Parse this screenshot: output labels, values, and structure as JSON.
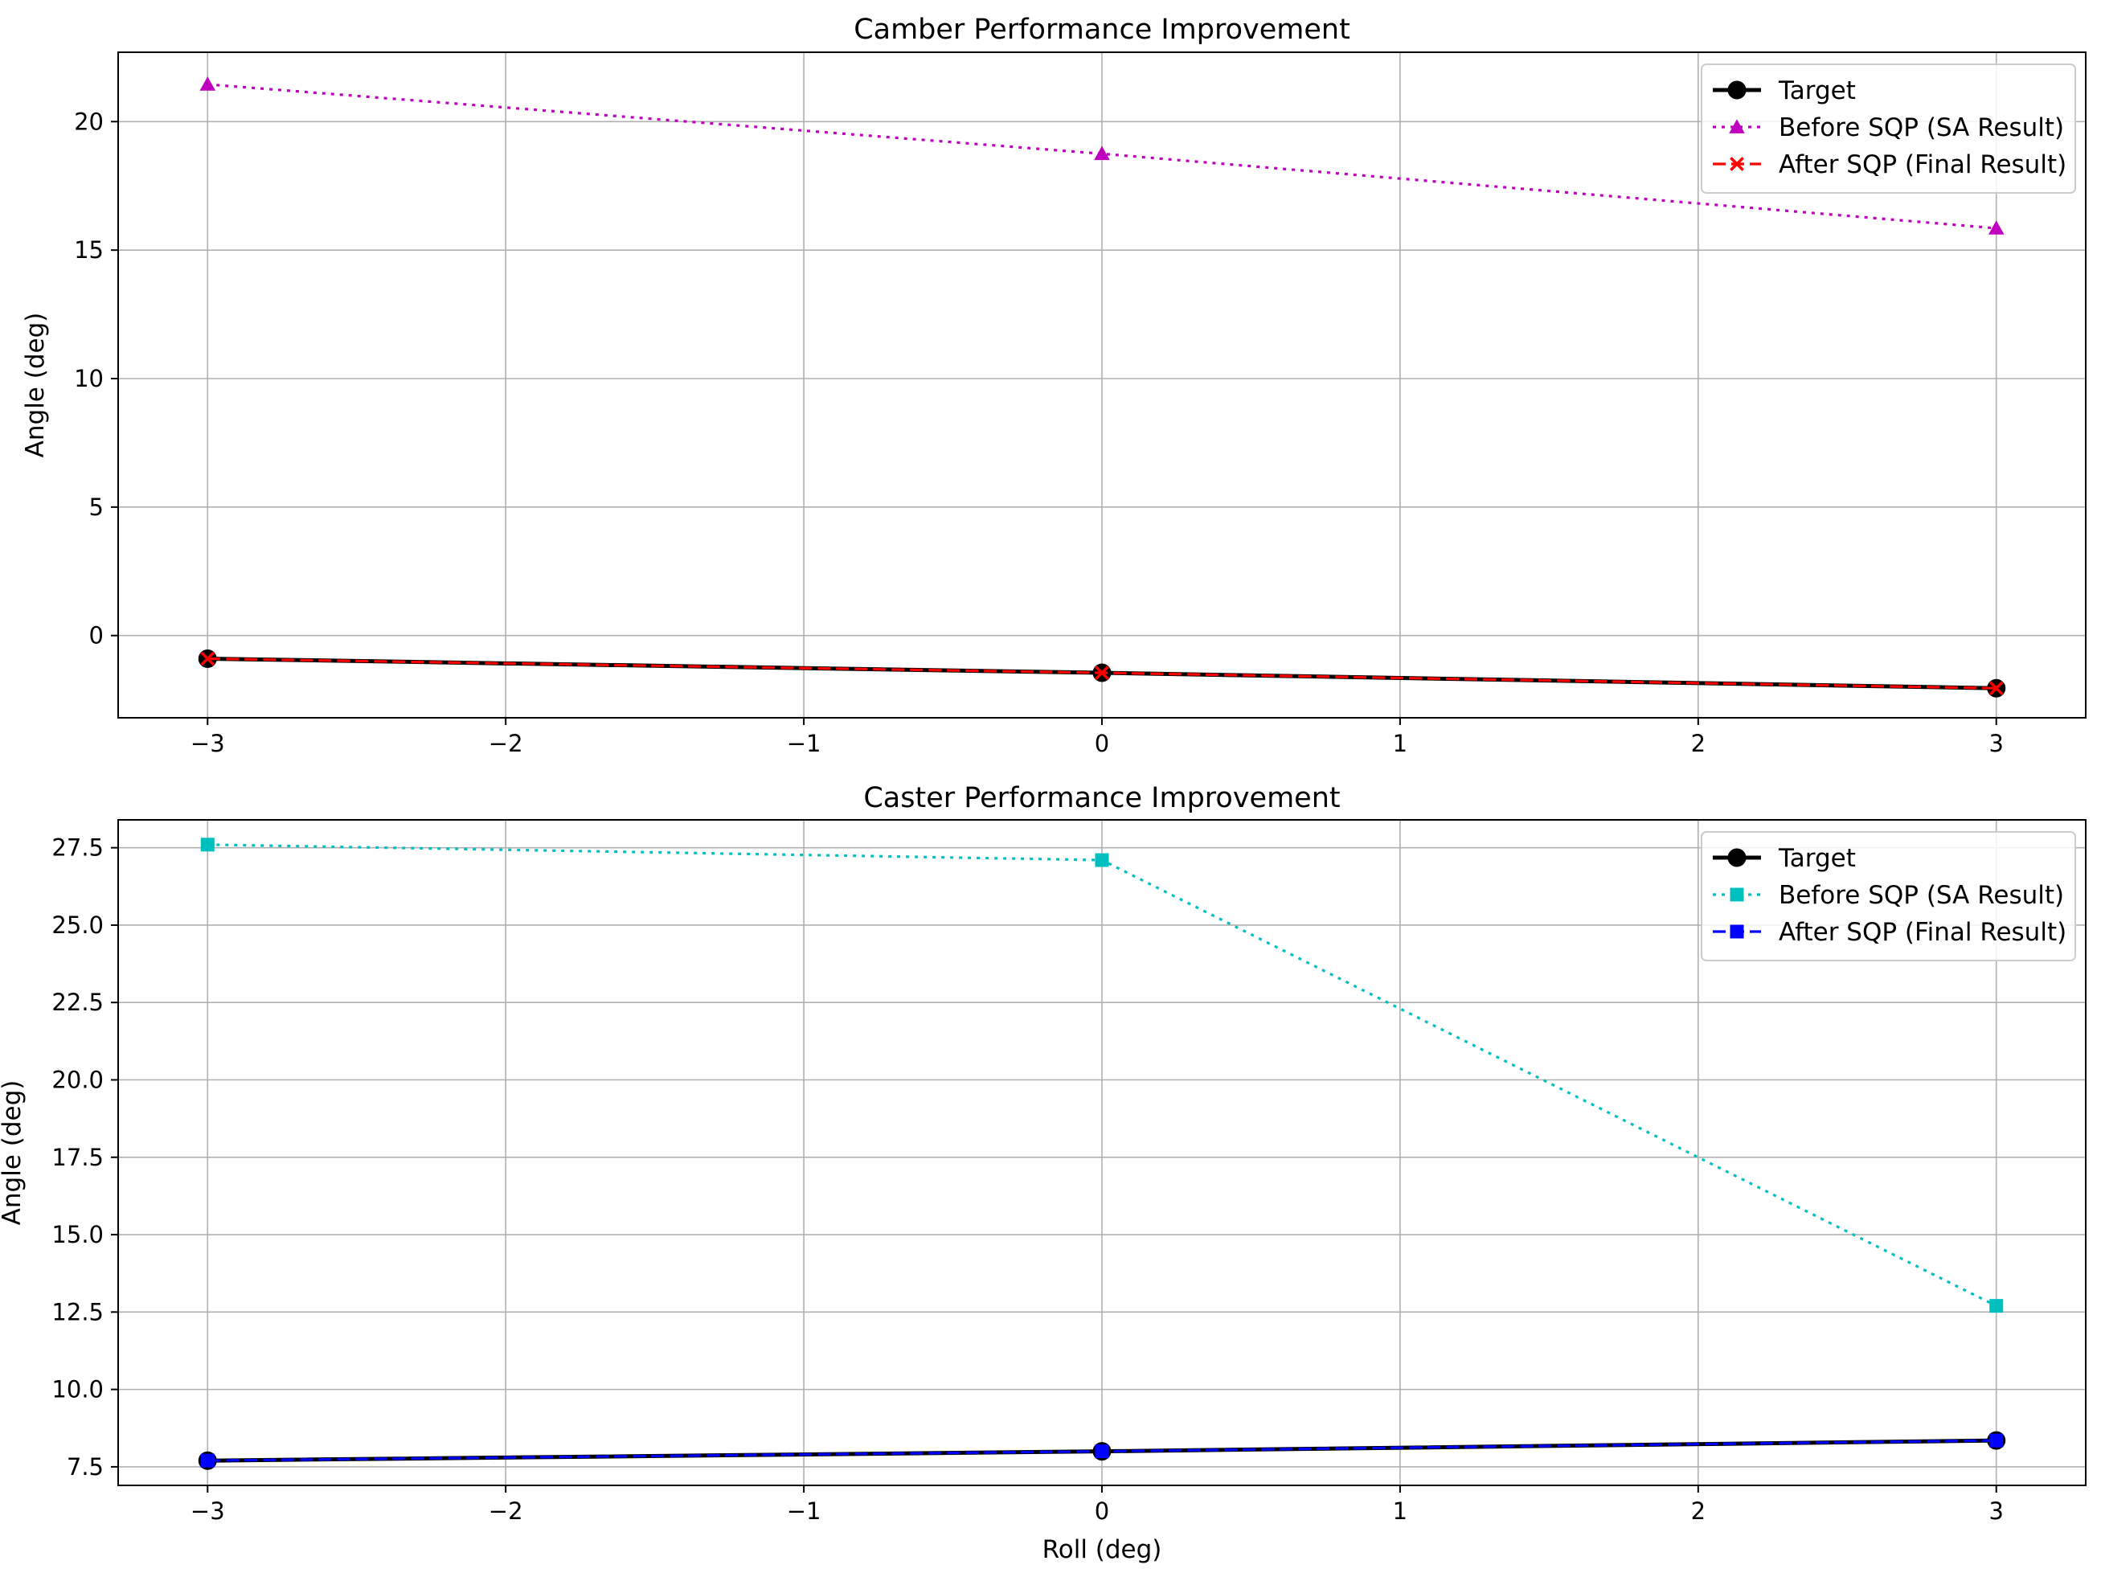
{
  "chart_data": [
    {
      "type": "line",
      "title": "Camber Performance Improvement",
      "xlabel": "",
      "ylabel": "Angle (deg)",
      "xlim": [
        -3.3,
        3.3
      ],
      "ylim": [
        -3.2,
        22.7
      ],
      "grid": true,
      "legend_position": "top-right",
      "xticks": [
        -3,
        -2,
        -1,
        0,
        1,
        2,
        3
      ],
      "xtick_labels": [
        "−3",
        "−2",
        "−1",
        "0",
        "1",
        "2",
        "3"
      ],
      "yticks": [
        0,
        5,
        10,
        15,
        20
      ],
      "ytick_labels": [
        "0",
        "5",
        "10",
        "15",
        "20"
      ],
      "x": [
        -3,
        0,
        3
      ],
      "series": [
        {
          "name": "Target",
          "values": [
            -0.9,
            -1.45,
            -2.05
          ],
          "color": "#000000",
          "line_style": "solid",
          "marker": "circle"
        },
        {
          "name": "Before SQP (SA Result)",
          "values": [
            21.45,
            18.75,
            15.85
          ],
          "color": "#bf00bf",
          "line_style": "dotted",
          "marker": "triangle"
        },
        {
          "name": "After SQP (Final Result)",
          "values": [
            -0.9,
            -1.45,
            -2.05
          ],
          "color": "#ff0000",
          "line_style": "dashed",
          "marker": "x"
        }
      ]
    },
    {
      "type": "line",
      "title": "Caster Performance Improvement",
      "xlabel": "Roll (deg)",
      "ylabel": "Angle (deg)",
      "xlim": [
        -3.3,
        3.3
      ],
      "ylim": [
        6.9,
        28.4
      ],
      "grid": true,
      "legend_position": "top-right",
      "xticks": [
        -3,
        -2,
        -1,
        0,
        1,
        2,
        3
      ],
      "xtick_labels": [
        "−3",
        "−2",
        "−1",
        "0",
        "1",
        "2",
        "3"
      ],
      "yticks": [
        7.5,
        10.0,
        12.5,
        15.0,
        17.5,
        20.0,
        22.5,
        25.0,
        27.5
      ],
      "ytick_labels": [
        "7.5",
        "10.0",
        "12.5",
        "15.0",
        "17.5",
        "20.0",
        "22.5",
        "25.0",
        "27.5"
      ],
      "x": [
        -3,
        0,
        3
      ],
      "series": [
        {
          "name": "Target",
          "values": [
            7.7,
            8.0,
            8.35
          ],
          "color": "#000000",
          "line_style": "solid",
          "marker": "circle"
        },
        {
          "name": "Before SQP (SA Result)",
          "values": [
            27.6,
            27.1,
            12.7
          ],
          "color": "#00bfbf",
          "line_style": "dotted",
          "marker": "square"
        },
        {
          "name": "After SQP (Final Result)",
          "values": [
            7.7,
            8.0,
            8.35
          ],
          "color": "#0000ff",
          "line_style": "dashed",
          "marker": "square"
        }
      ]
    }
  ]
}
